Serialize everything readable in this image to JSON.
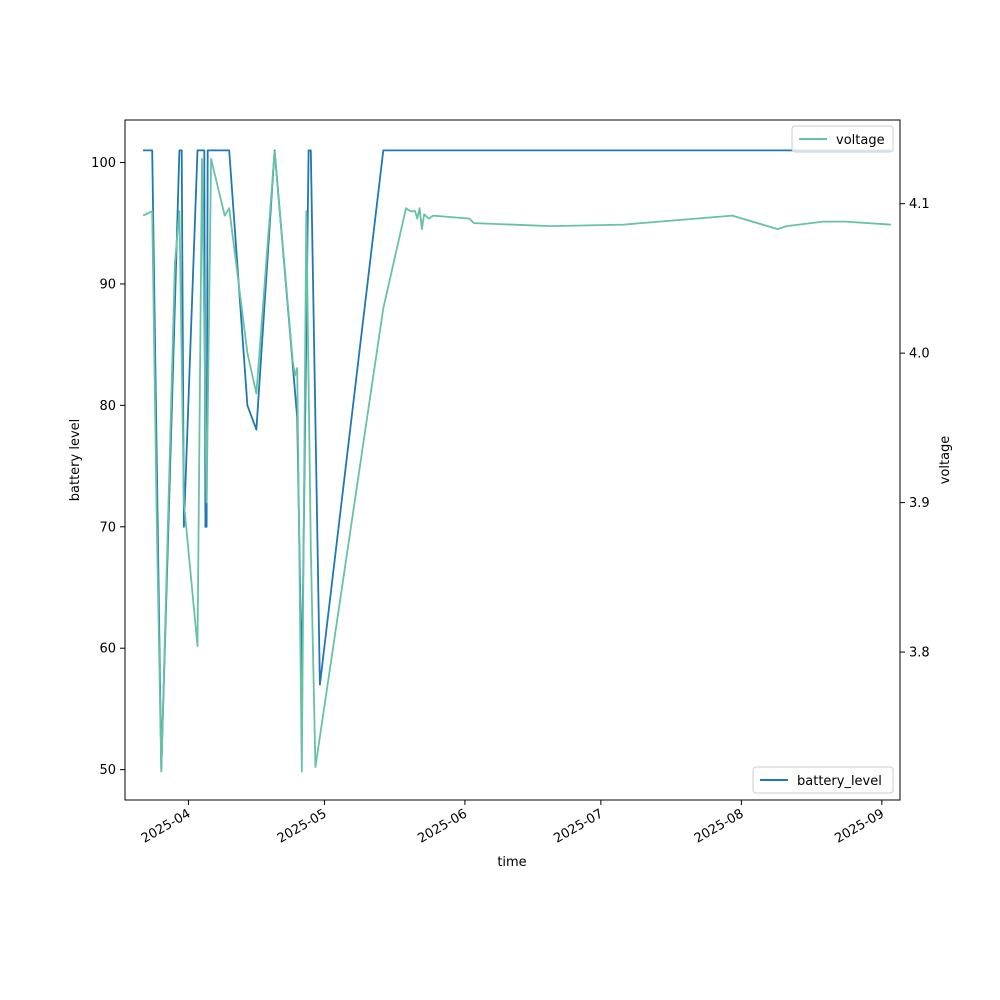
{
  "chart_data": {
    "type": "line",
    "title": "",
    "xlabel": "time",
    "ylabel_left": "battery level",
    "ylabel_right": "voltage",
    "x_range": [
      "2025-03-18",
      "2025-09-05"
    ],
    "y_left_range": [
      47.5,
      103.5
    ],
    "y_right_range": [
      3.701,
      4.156
    ],
    "x_ticks": [
      "2025-04",
      "2025-05",
      "2025-06",
      "2025-07",
      "2025-08",
      "2025-09"
    ],
    "x_tick_dates": [
      "2025-04-01",
      "2025-05-01",
      "2025-06-01",
      "2025-07-01",
      "2025-08-01",
      "2025-09-01"
    ],
    "y_left_ticks": [
      "50",
      "60",
      "70",
      "80",
      "90",
      "100"
    ],
    "y_right_ticks": [
      "3.8",
      "3.9",
      "4.0",
      "4.1"
    ],
    "grid": false,
    "series": [
      {
        "name": "battery_level",
        "axis": "left",
        "color": "#1f77b4",
        "legend_position": "lower-right",
        "points": [
          [
            "2025-03-22",
            101
          ],
          [
            "2025-03-24",
            101
          ],
          [
            "2025-03-26",
            50
          ],
          [
            "2025-03-30",
            101
          ],
          [
            "2025-03-30T12",
            101
          ],
          [
            "2025-03-31",
            70
          ],
          [
            "2025-04-03",
            101
          ],
          [
            "2025-04-04T12",
            101
          ],
          [
            "2025-04-04T18",
            70
          ],
          [
            "2025-04-05",
            70
          ],
          [
            "2025-04-05T06",
            101
          ],
          [
            "2025-04-10",
            101
          ],
          [
            "2025-04-14",
            80
          ],
          [
            "2025-04-16",
            78
          ],
          [
            "2025-04-20",
            101
          ],
          [
            "2025-04-25",
            79
          ],
          [
            "2025-04-26",
            57
          ],
          [
            "2025-04-27T12",
            101
          ],
          [
            "2025-04-28",
            101
          ],
          [
            "2025-04-30",
            57
          ],
          [
            "2025-05-14",
            101
          ],
          [
            "2025-09-03",
            101
          ]
        ]
      },
      {
        "name": "voltage",
        "axis": "right",
        "color": "#66c2a5",
        "legend_position": "upper-right",
        "points": [
          [
            "2025-03-22",
            4.092
          ],
          [
            "2025-03-24",
            4.095
          ],
          [
            "2025-03-25",
            3.89
          ],
          [
            "2025-03-26",
            3.72
          ],
          [
            "2025-03-29",
            4.06
          ],
          [
            "2025-03-30",
            4.095
          ],
          [
            "2025-03-31",
            3.9
          ],
          [
            "2025-04-03",
            3.804
          ],
          [
            "2025-04-04",
            4.13
          ],
          [
            "2025-04-05",
            3.9
          ],
          [
            "2025-04-06",
            4.13
          ],
          [
            "2025-04-09",
            4.092
          ],
          [
            "2025-04-10",
            4.097
          ],
          [
            "2025-04-14",
            4.0
          ],
          [
            "2025-04-16",
            3.973
          ],
          [
            "2025-04-20",
            4.135
          ],
          [
            "2025-04-24",
            3.995
          ],
          [
            "2025-04-24T12",
            3.985
          ],
          [
            "2025-04-25",
            3.99
          ],
          [
            "2025-04-26",
            3.72
          ],
          [
            "2025-04-27",
            4.095
          ],
          [
            "2025-04-28",
            3.87
          ],
          [
            "2025-04-29",
            3.723
          ],
          [
            "2025-05-14",
            4.03
          ],
          [
            "2025-05-19",
            4.097
          ],
          [
            "2025-05-20",
            4.095
          ],
          [
            "2025-05-21",
            4.095
          ],
          [
            "2025-05-21T12",
            4.09
          ],
          [
            "2025-05-22",
            4.097
          ],
          [
            "2025-05-22T12",
            4.083
          ],
          [
            "2025-05-23",
            4.093
          ],
          [
            "2025-05-24",
            4.09
          ],
          [
            "2025-05-25",
            4.092
          ],
          [
            "2025-06-02",
            4.09
          ],
          [
            "2025-06-03",
            4.087
          ],
          [
            "2025-06-20",
            4.085
          ],
          [
            "2025-07-06",
            4.086
          ],
          [
            "2025-07-30",
            4.092
          ],
          [
            "2025-08-09",
            4.083
          ],
          [
            "2025-08-11",
            4.085
          ],
          [
            "2025-08-19",
            4.088
          ],
          [
            "2025-08-24",
            4.088
          ],
          [
            "2025-09-03",
            4.086
          ]
        ]
      }
    ]
  }
}
